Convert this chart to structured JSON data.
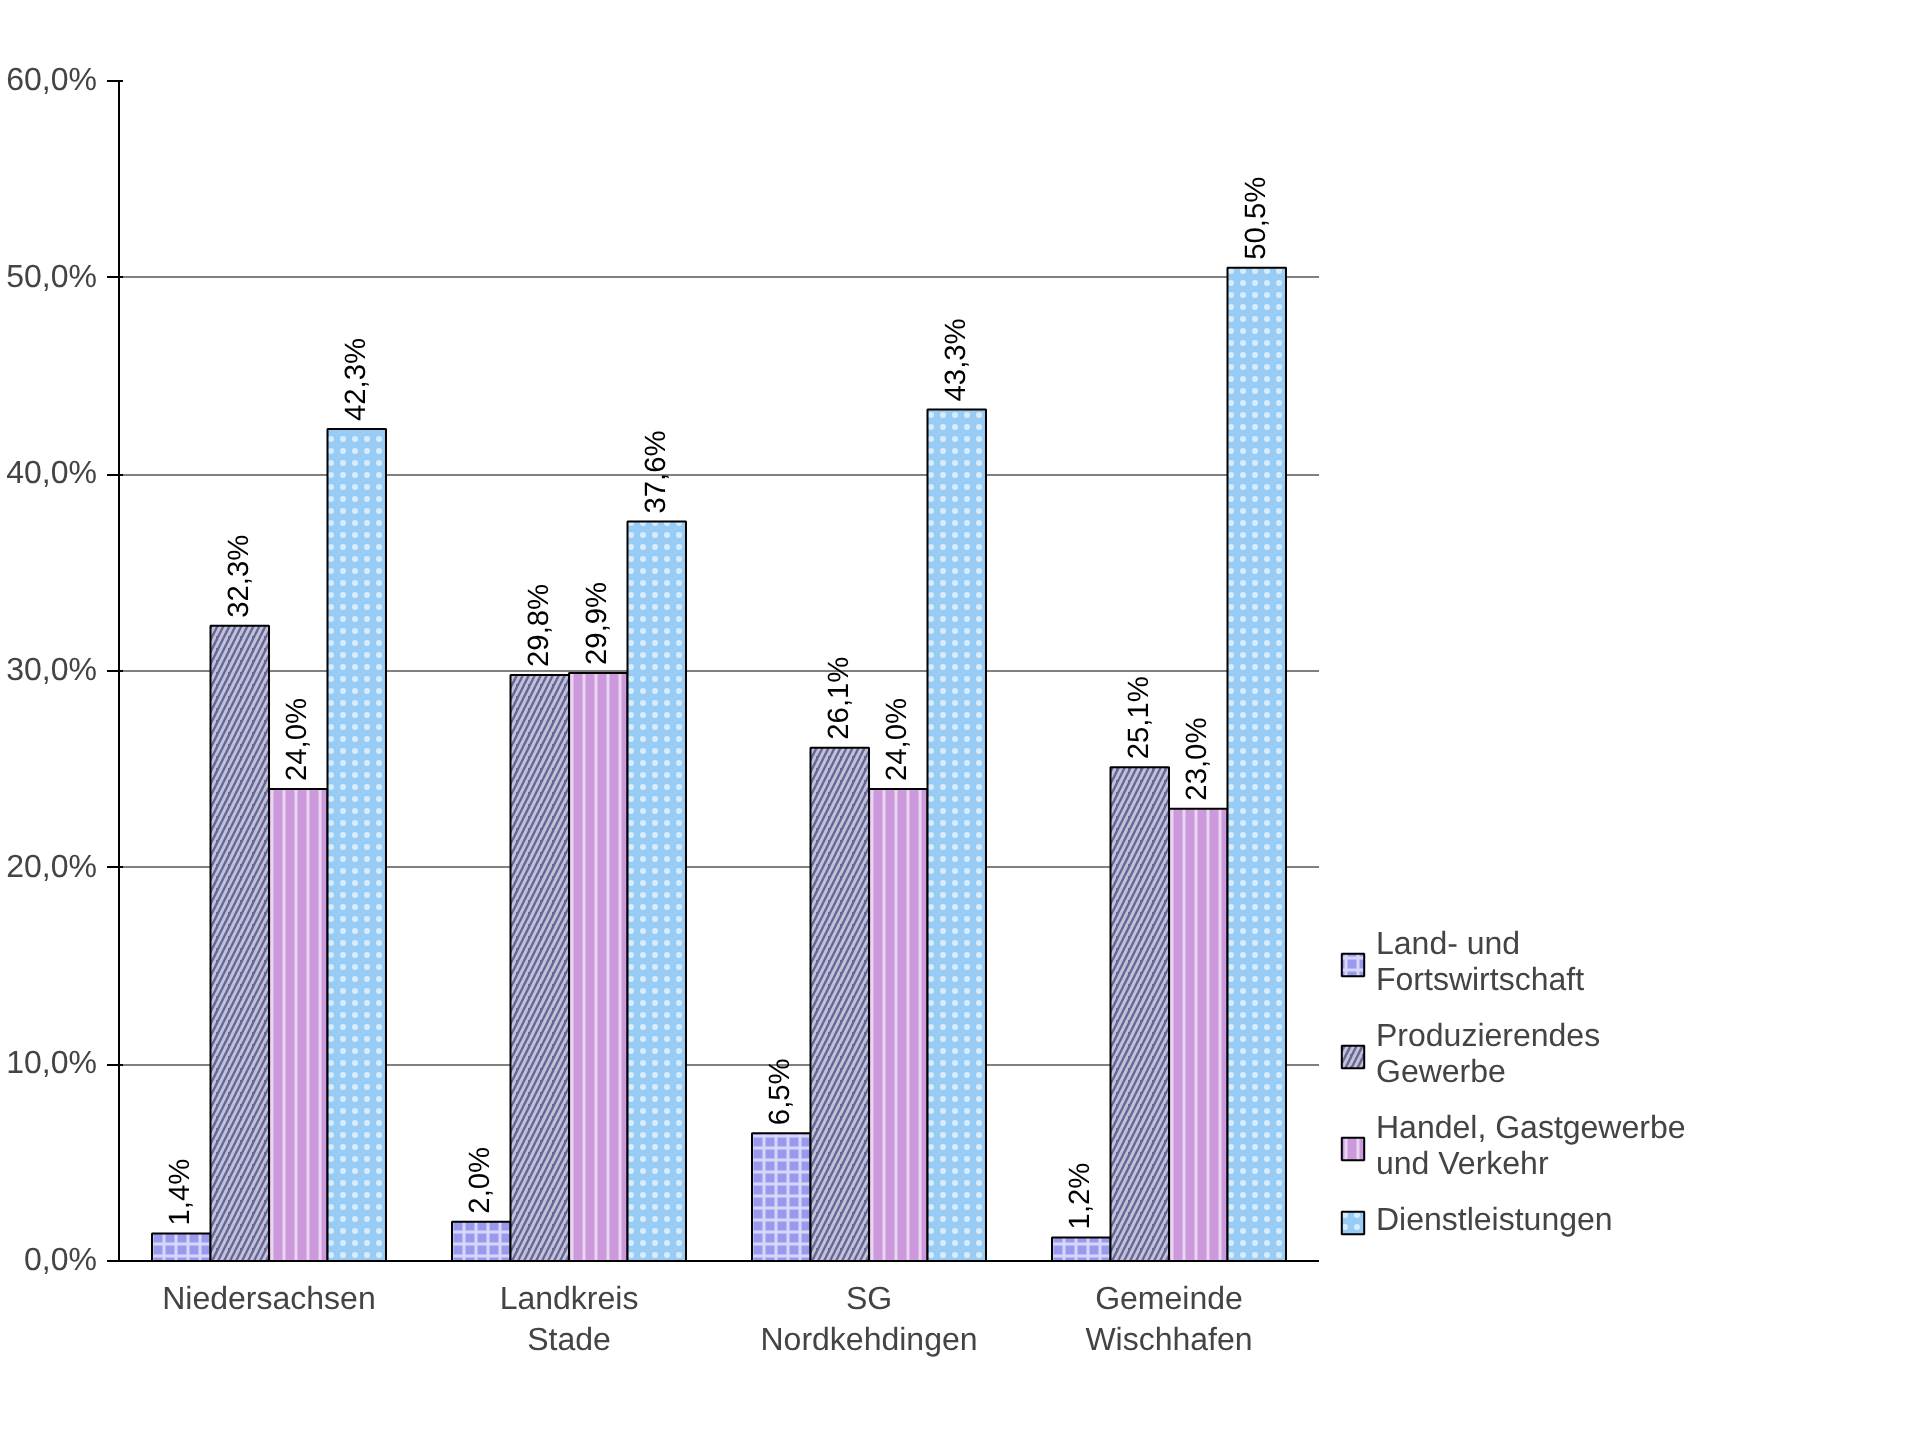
{
  "chart_data": {
    "type": "bar",
    "categories": [
      "Niedersachsen",
      "Landkreis\nStade",
      "SG\nNordkehdingen",
      "Gemeinde\nWischhafen"
    ],
    "series": [
      {
        "name": "Land- und\nFortswirtschaft",
        "color": "#9999ee",
        "values": [
          1.4,
          2.0,
          6.5,
          1.2
        ],
        "value_labels": [
          "1,4%",
          "2,0%",
          "6,5%",
          "1,2%"
        ]
      },
      {
        "name": "Produzierendes\nGewerbe",
        "color": "#666699",
        "values": [
          32.3,
          29.8,
          26.1,
          25.1
        ],
        "value_labels": [
          "32,3%",
          "29,8%",
          "26,1%",
          "25,1%"
        ]
      },
      {
        "name": "Handel, Gastgewerbe\nund Verkehr",
        "color": "#cc99dd",
        "values": [
          24.0,
          29.9,
          24.0,
          23.0
        ],
        "value_labels": [
          "24,0%",
          "29,9%",
          "24,0%",
          "23,0%"
        ]
      },
      {
        "name": "Dienstleistungen",
        "color": "#99ccf5",
        "values": [
          42.3,
          37.6,
          43.3,
          50.5
        ],
        "value_labels": [
          "42,3%",
          "37,6%",
          "43,3%",
          "50,5%"
        ]
      }
    ],
    "ylim": [
      0,
      60
    ],
    "yticks": [
      {
        "value": 0,
        "label": "0,0%"
      },
      {
        "value": 10,
        "label": "10,0%"
      },
      {
        "value": 20,
        "label": "20,0%"
      },
      {
        "value": 30,
        "label": "30,0%"
      },
      {
        "value": 40,
        "label": "40,0%"
      },
      {
        "value": 50,
        "label": "50,0%"
      },
      {
        "value": 60,
        "label": "60,0%"
      }
    ],
    "grid": "y",
    "legend": "right"
  }
}
